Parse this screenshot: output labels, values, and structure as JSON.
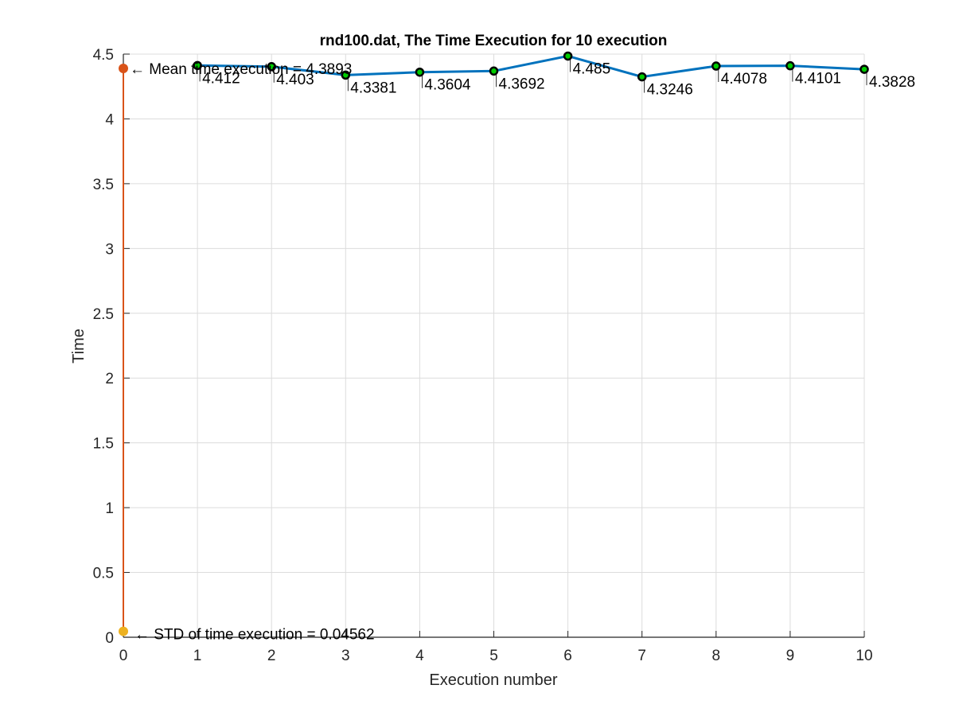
{
  "chart_data": {
    "type": "line",
    "title": "rnd100.dat, The Time Execution for 10 execution",
    "xlabel": "Execution number",
    "ylabel": "Time",
    "xlim": [
      0,
      10
    ],
    "ylim": [
      0,
      4.5
    ],
    "grid": true,
    "x_ticks": [
      0,
      1,
      2,
      3,
      4,
      5,
      6,
      7,
      8,
      9,
      10
    ],
    "x_tick_labels": [
      "0",
      "1",
      "2",
      "3",
      "4",
      "5",
      "6",
      "7",
      "8",
      "9",
      "10"
    ],
    "y_ticks": [
      0,
      0.5,
      1,
      1.5,
      2,
      2.5,
      3,
      3.5,
      4,
      4.5
    ],
    "y_tick_labels": [
      "0",
      "0.5",
      "1",
      "1.5",
      "2",
      "2.5",
      "3",
      "3.5",
      "4",
      "4.5"
    ],
    "series": [
      {
        "x": [
          1,
          2,
          3,
          4,
          5,
          6,
          7,
          8,
          9,
          10
        ],
        "values": [
          4.412,
          4.403,
          4.3381,
          4.3604,
          4.3692,
          4.485,
          4.3246,
          4.4078,
          4.4101,
          4.3828
        ],
        "labels": [
          "4.412",
          "4.403",
          "4.3381",
          "4.3604",
          "4.3692",
          "4.485",
          "4.3246",
          "4.4078",
          "4.4101",
          "4.3828"
        ],
        "color": "#0072BD",
        "marker_fill": "#00CC00",
        "marker_edge": "#000000"
      }
    ],
    "mean": {
      "value": 4.3893,
      "label": "← Mean time execution = 4.3893",
      "color": "#D95319"
    },
    "std": {
      "value": 0.04562,
      "label": "← STD of time execution = 0.04562",
      "color": "#EDB120"
    },
    "colors": {
      "axis": "#262626",
      "grid": "#dcdcdc"
    }
  }
}
